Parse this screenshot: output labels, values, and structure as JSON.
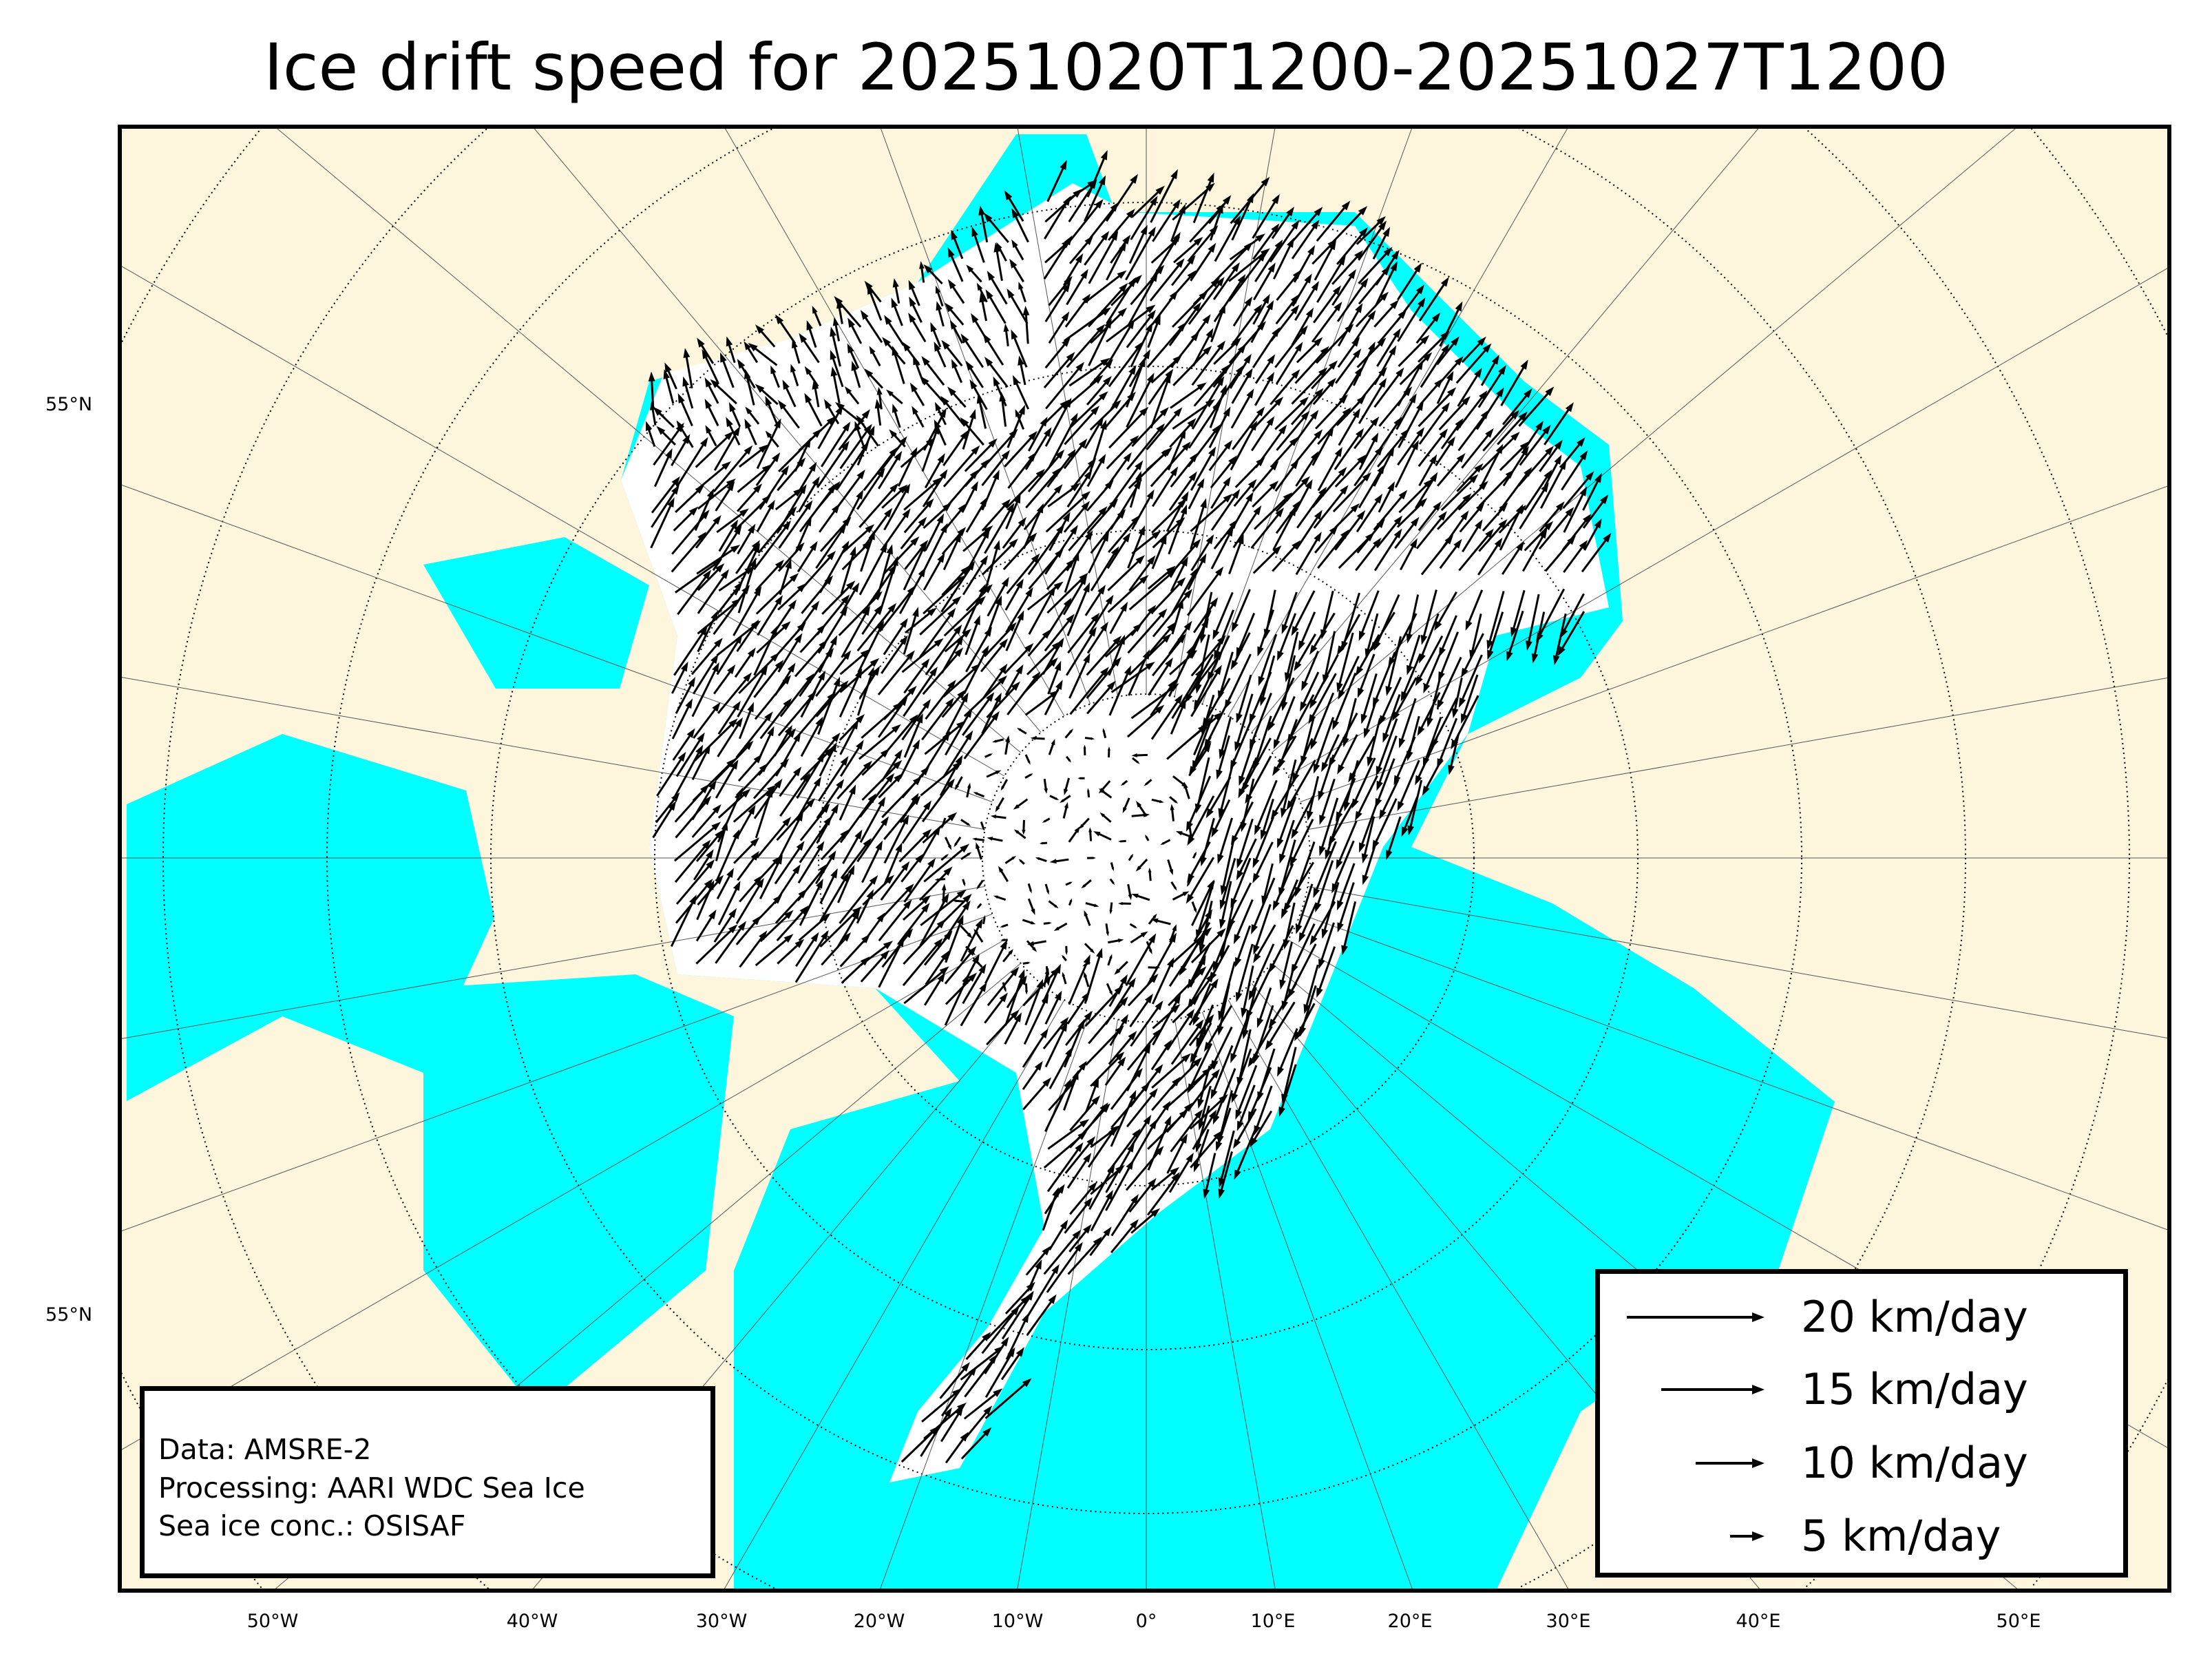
{
  "title": "Ice drift speed for 20251020T1200-20251027T1200",
  "colors": {
    "land": "#fdf6dc",
    "ocean": "#00ffff",
    "ice": "#ffffff",
    "arrow": "#000000"
  },
  "latitude_labels": [
    "55°N",
    "55°N"
  ],
  "longitude_labels": [
    "50°W",
    "40°W",
    "30°W",
    "20°W",
    "10°W",
    "0°",
    "10°E",
    "20°E",
    "30°E",
    "40°E",
    "50°E"
  ],
  "info_box": {
    "data": "Data: AMSRE-2",
    "processing": "Processing: AARI WDC Sea Ice",
    "conc": "Sea ice conc.: OSISAF"
  },
  "legend": [
    {
      "speed": 20,
      "label": "20 km/day"
    },
    {
      "speed": 15,
      "label": "15 km/day"
    },
    {
      "speed": 10,
      "label": "10 km/day"
    },
    {
      "speed": 5,
      "label": "5 km/day"
    }
  ]
}
